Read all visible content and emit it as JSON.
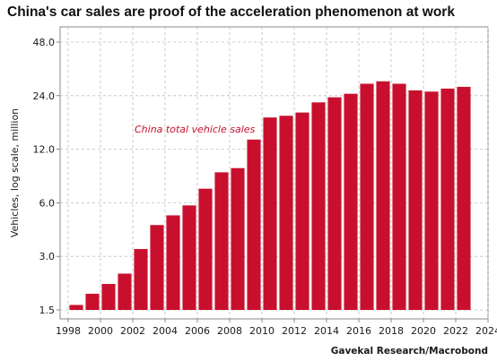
{
  "chart_data": {
    "type": "bar",
    "title": "China's car sales are proof of the acceleration phenomenon at work",
    "ylabel": "Vehicles, log scale, million",
    "xlabel": "",
    "y_scale": "log",
    "ylim": [
      1.5,
      48.0
    ],
    "y_ticks": [
      1.5,
      3.0,
      6.0,
      12.0,
      24.0,
      48.0
    ],
    "y_tick_labels": [
      "1.5",
      "3.0",
      "6.0",
      "12.0",
      "24.0",
      "48.0"
    ],
    "x_ticks": [
      1998,
      2000,
      2002,
      2004,
      2006,
      2008,
      2010,
      2012,
      2014,
      2016,
      2018,
      2020,
      2022,
      2024
    ],
    "xlim": [
      1997.5,
      2024
    ],
    "grid": true,
    "bar_color": "#c8102e",
    "series": [
      {
        "name": "China total vehicle sales",
        "x": [
          1998,
          1999,
          2000,
          2001,
          2002,
          2003,
          2004,
          2005,
          2006,
          2007,
          2008,
          2009,
          2010,
          2011,
          2012,
          2013,
          2014,
          2015,
          2016,
          2017,
          2018,
          2019,
          2020,
          2021,
          2022
        ],
        "values": [
          1.6,
          1.85,
          2.1,
          2.4,
          3.3,
          4.5,
          5.1,
          5.8,
          7.2,
          8.9,
          9.4,
          13.6,
          18.1,
          18.5,
          19.3,
          22.0,
          23.5,
          24.6,
          28.0,
          28.9,
          28.0,
          25.7,
          25.3,
          26.3,
          26.9
        ]
      }
    ],
    "annotation": "China total vehicle sales",
    "source": "Gavekal Research/Macrobond"
  }
}
